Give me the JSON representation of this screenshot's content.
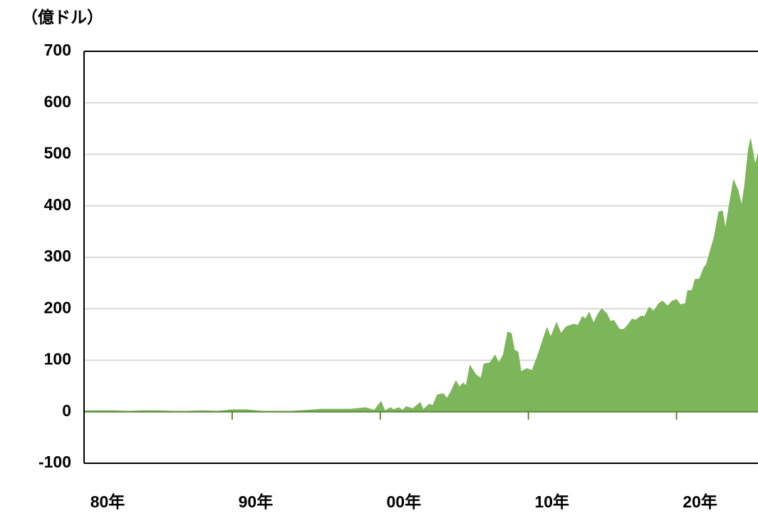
{
  "chart_data": {
    "type": "area",
    "unit_label": "（億ドル）",
    "x": [
      1980,
      1981,
      1982,
      1983,
      1984,
      1985,
      1986,
      1987,
      1988,
      1989,
      1990,
      1991,
      1992,
      1993,
      1994,
      1995,
      1996,
      1997,
      1998,
      1999,
      1999.6,
      2000.05,
      2000.3,
      2000.7,
      2000.9,
      2001.25,
      2001.5,
      2001.75,
      2002.2,
      2002.7,
      2002.9,
      2003.3,
      2003.55,
      2003.85,
      2004.25,
      2004.5,
      2004.75,
      2005.1,
      2005.35,
      2005.6,
      2005.8,
      2006.05,
      2006.45,
      2006.8,
      2007.0,
      2007.4,
      2007.75,
      2008.0,
      2008.3,
      2008.6,
      2008.85,
      2009.05,
      2009.3,
      2009.5,
      2009.9,
      2010.25,
      2010.6,
      2011.25,
      2011.5,
      2011.9,
      2012.2,
      2012.55,
      2013.05,
      2013.35,
      2013.65,
      2013.85,
      2014.1,
      2014.4,
      2014.7,
      2014.95,
      2015.3,
      2015.55,
      2015.75,
      2016.15,
      2016.45,
      2016.75,
      2017.0,
      2017.25,
      2017.6,
      2017.85,
      2018.15,
      2018.45,
      2018.8,
      2019.05,
      2019.4,
      2019.7,
      2020.0,
      2020.25,
      2020.6,
      2020.75,
      2021.05,
      2021.25,
      2021.55,
      2021.85,
      2022.0,
      2022.25,
      2022.55,
      2022.85,
      2023.1,
      2023.3,
      2023.55,
      2023.85,
      2024.15,
      2024.4,
      2024.6,
      2024.85,
      2025.0,
      2025.3,
      2025.5
    ],
    "values": [
      2,
      2,
      2,
      1,
      2,
      2,
      1,
      1,
      2,
      1,
      4,
      4,
      1,
      1,
      1,
      3,
      5,
      5,
      5,
      8,
      3,
      20,
      2,
      8,
      4,
      8,
      3,
      10,
      6,
      18,
      4,
      15,
      12,
      33,
      35,
      26,
      38,
      60,
      48,
      56,
      50,
      90,
      72,
      65,
      93,
      95,
      110,
      95,
      110,
      155,
      152,
      120,
      116,
      78,
      84,
      80,
      107,
      163,
      145,
      173,
      152,
      165,
      170,
      168,
      185,
      180,
      193,
      172,
      190,
      200,
      190,
      175,
      178,
      160,
      160,
      170,
      180,
      178,
      186,
      185,
      203,
      195,
      210,
      215,
      205,
      215,
      218,
      208,
      210,
      235,
      236,
      257,
      258,
      280,
      285,
      310,
      340,
      388,
      390,
      355,
      400,
      450,
      430,
      400,
      440,
      510,
      530,
      480,
      500
    ],
    "color": "#7cb55a",
    "xlim": [
      1980,
      2025.5
    ],
    "xticks": [
      {
        "value": 1980,
        "label": "80年"
      },
      {
        "value": 1990,
        "label": "90年"
      },
      {
        "value": 2000,
        "label": "00年"
      },
      {
        "value": 2010,
        "label": "10年"
      },
      {
        "value": 2020,
        "label": "20年"
      }
    ],
    "ylim": [
      -100,
      700
    ],
    "yticks": [
      -100,
      0,
      100,
      200,
      300,
      400,
      500,
      600,
      700
    ],
    "grid": true
  }
}
